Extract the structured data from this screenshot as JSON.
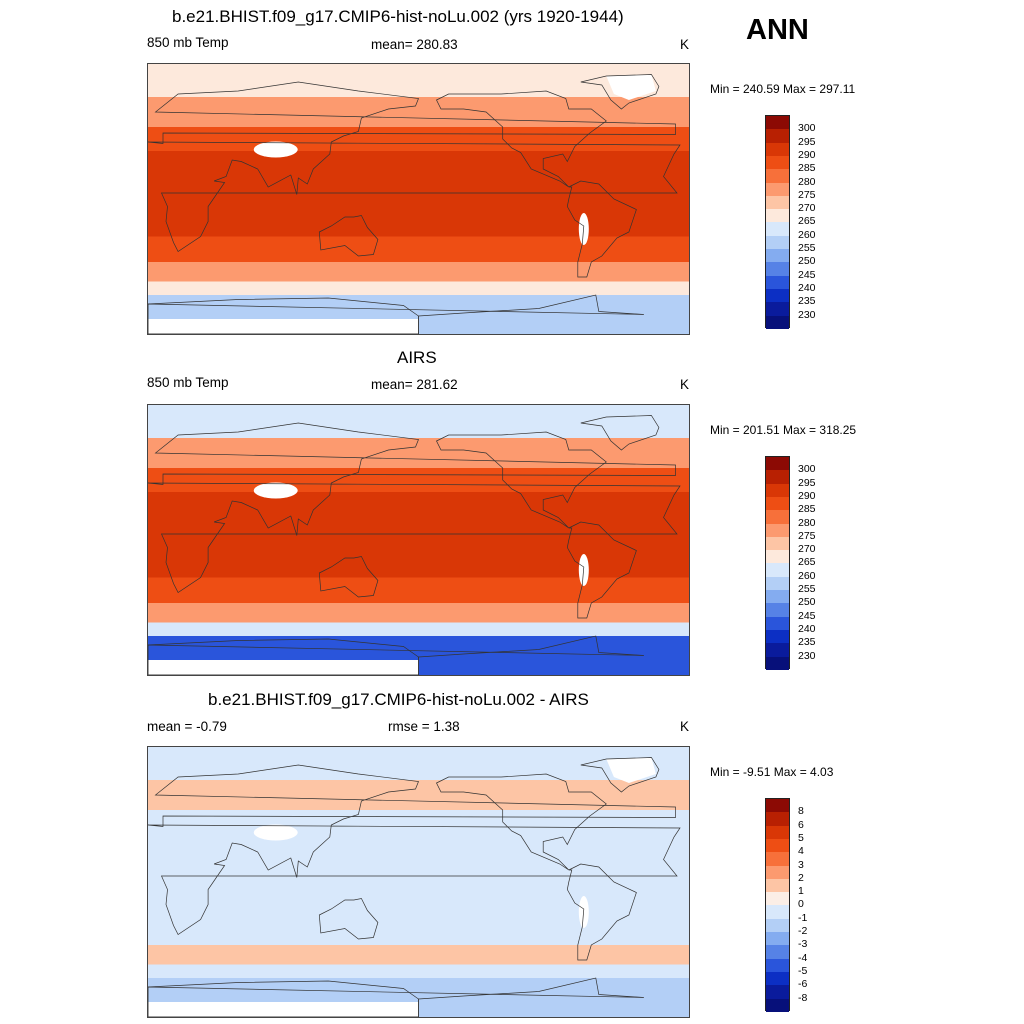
{
  "season": "ANN",
  "panels": [
    {
      "title": "b.e21.BHIST.f09_g17.CMIP6-hist-noLu.002 (yrs 1920-1944)",
      "left_label": "850 mb Temp",
      "center_label": "mean= 280.83",
      "right_label": "K",
      "minmax": "Min = 240.59 Max = 297.11",
      "palette": "abs",
      "colorbar": {
        "labels": [
          "300",
          "295",
          "290",
          "285",
          "280",
          "275",
          "270",
          "265",
          "260",
          "255",
          "250",
          "245",
          "240",
          "235",
          "230"
        ],
        "colors": [
          "#8c0a04",
          "#b82002",
          "#d93706",
          "#ee4e14",
          "#f7703a",
          "#fc9a6f",
          "#fdc5a5",
          "#fde9dc",
          "#d8e8fb",
          "#b3cff6",
          "#84acf0",
          "#5682e6",
          "#2a55db",
          "#0c2fc4",
          "#0a1b9c",
          "#07107a"
        ]
      },
      "map_colors": {
        "pole": "#fde9dc",
        "mid": "#fc9a6f",
        "sub": "#ee4e14",
        "trop": "#d93706",
        "south": "#b3cff6",
        "ice": "#ffffff"
      }
    },
    {
      "title": "AIRS",
      "left_label": "850 mb Temp",
      "center_label": "mean= 281.62",
      "right_label": "K",
      "minmax": "Min = 201.51 Max = 318.25",
      "palette": "abs",
      "colorbar": {
        "labels": [
          "300",
          "295",
          "290",
          "285",
          "280",
          "275",
          "270",
          "265",
          "260",
          "255",
          "250",
          "245",
          "240",
          "235",
          "230"
        ],
        "colors": [
          "#8c0a04",
          "#b82002",
          "#d93706",
          "#ee4e14",
          "#f7703a",
          "#fc9a6f",
          "#fdc5a5",
          "#fde9dc",
          "#d8e8fb",
          "#b3cff6",
          "#84acf0",
          "#5682e6",
          "#2a55db",
          "#0c2fc4",
          "#0a1b9c",
          "#07107a"
        ]
      },
      "map_colors": {
        "pole": "#d8e8fb",
        "mid": "#fc9a6f",
        "sub": "#ee4e14",
        "trop": "#d93706",
        "south": "#2a55db",
        "ice": "#ffffff"
      }
    },
    {
      "title": "b.e21.BHIST.f09_g17.CMIP6-hist-noLu.002 - AIRS",
      "left_label": "mean =  -0.79",
      "center_label": "rmse =   1.38",
      "right_label": "K",
      "minmax": "Min =  -9.51 Max =   4.03",
      "palette": "diff",
      "colorbar": {
        "labels": [
          "8",
          "6",
          "5",
          "4",
          "3",
          "2",
          "1",
          "0",
          "-1",
          "-2",
          "-3",
          "-4",
          "-5",
          "-6",
          "-8"
        ],
        "colors": [
          "#8c0a04",
          "#b82002",
          "#d93706",
          "#ee4e14",
          "#f7703a",
          "#fc9a6f",
          "#fdc5a5",
          "#fbeee6",
          "#d8e8fb",
          "#b3cff6",
          "#84acf0",
          "#5682e6",
          "#2a55db",
          "#0c2fc4",
          "#0a1b9c",
          "#07107a"
        ]
      },
      "map_colors": {
        "pole": "#d8e8fb",
        "mid": "#fdc5a5",
        "sub": "#d8e8fb",
        "trop": "#d8e8fb",
        "south": "#b3cff6",
        "ice": "#ffffff"
      }
    }
  ]
}
